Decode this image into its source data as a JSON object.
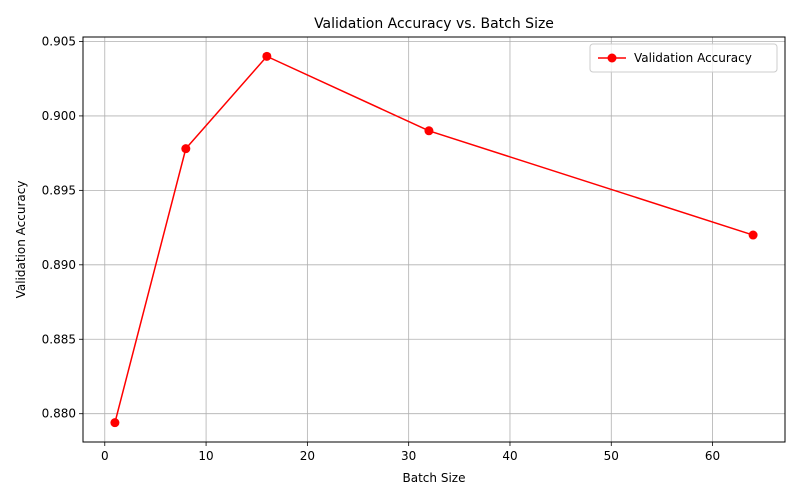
{
  "chart_data": {
    "type": "line",
    "title": "Validation Accuracy vs. Batch Size",
    "xlabel": "Batch Size",
    "ylabel": "Validation Accuracy",
    "xlim": [
      -2.15,
      67.15
    ],
    "ylim": [
      0.8781,
      0.9053
    ],
    "xticks": [
      0,
      10,
      20,
      30,
      40,
      50,
      60
    ],
    "xtick_labels": [
      "0",
      "10",
      "20",
      "30",
      "40",
      "50",
      "60"
    ],
    "yticks": [
      0.88,
      0.885,
      0.89,
      0.895,
      0.9,
      0.905
    ],
    "ytick_labels": [
      "0.880",
      "0.885",
      "0.890",
      "0.895",
      "0.900",
      "0.905"
    ],
    "grid": true,
    "legend_position": "top-right",
    "series": [
      {
        "name": "Validation Accuracy",
        "color": "#ff0000",
        "marker": "circle",
        "x": [
          1,
          8,
          16,
          32,
          64
        ],
        "y": [
          0.8794,
          0.8978,
          0.904,
          0.899,
          0.892
        ]
      }
    ]
  }
}
